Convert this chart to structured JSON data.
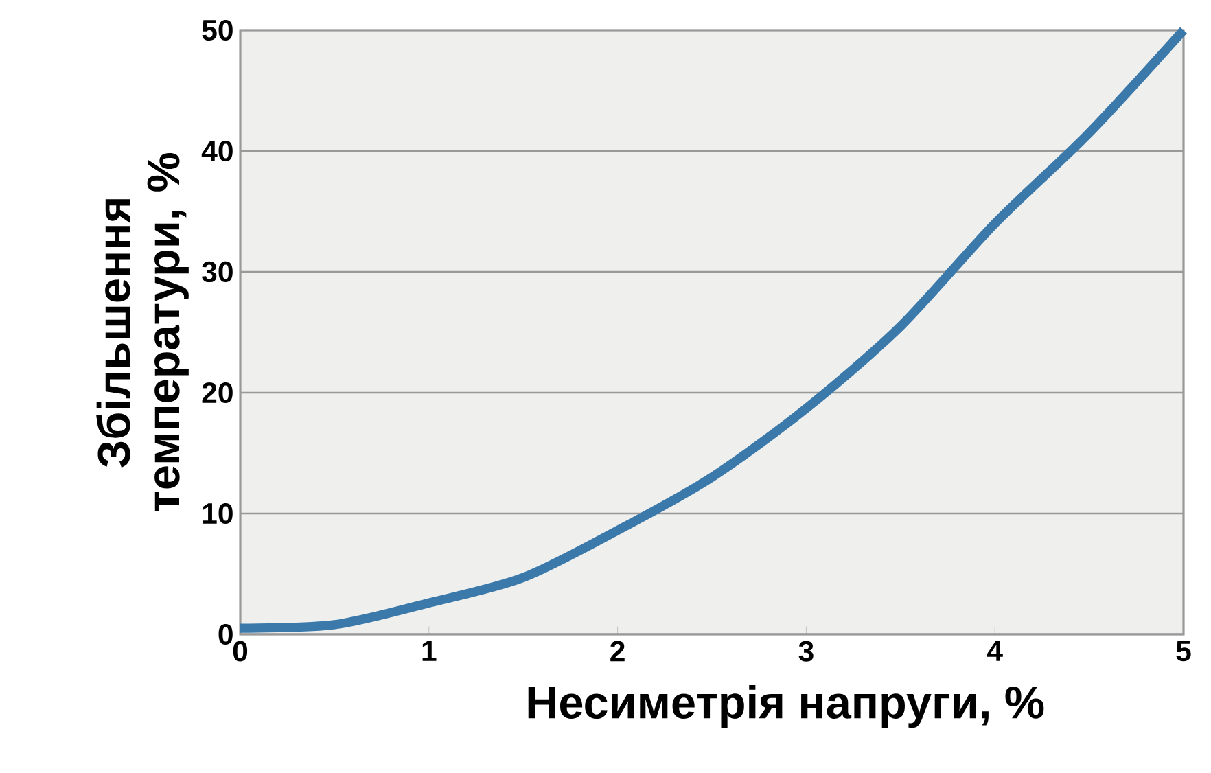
{
  "chart_data": {
    "type": "line",
    "xlabel": "Несиметрія напруги, %",
    "ylabel": "Збільшення температури, %",
    "x": [
      0,
      0.5,
      1,
      1.5,
      2,
      2.5,
      3,
      3.5,
      4,
      4.5,
      5
    ],
    "series": [
      {
        "color": "#3a79aa",
        "values": [
          0.5,
          0.8,
          2.6,
          4.7,
          8.6,
          13,
          18.7,
          25.5,
          34,
          41.5,
          50
        ]
      }
    ],
    "xlim": [
      0,
      5
    ],
    "ylim": [
      0,
      50
    ],
    "xticks": [
      0,
      1,
      2,
      3,
      4,
      5
    ],
    "yticks": [
      0,
      10,
      20,
      30,
      40,
      50
    ],
    "grid": "y",
    "marker": "none",
    "line_style": "solid"
  }
}
